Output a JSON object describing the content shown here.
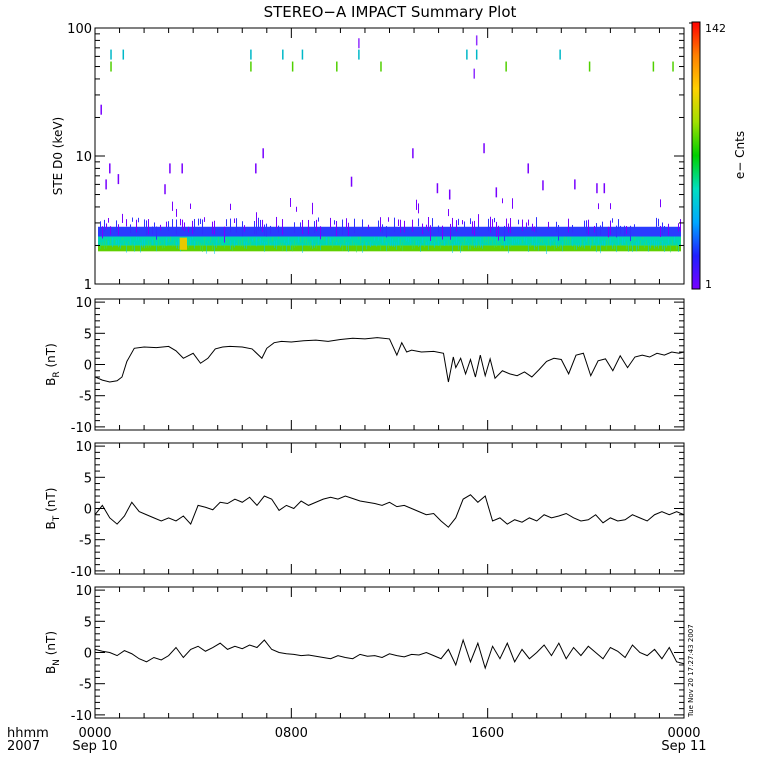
{
  "title": "STEREO−A IMPACT Summary Plot",
  "timestamp_note": "Tue Nov 20 17:27:43 2007",
  "x_axis": {
    "row1_label": "hhmm",
    "row2_label": "2007",
    "ticks": [
      {
        "hours": 0,
        "label": "0000",
        "sublabel": "Sep 10"
      },
      {
        "hours": 8,
        "label": "0800",
        "sublabel": ""
      },
      {
        "hours": 16,
        "label": "1600",
        "sublabel": ""
      },
      {
        "hours": 24,
        "label": "0000",
        "sublabel": "Sep 11"
      }
    ]
  },
  "chart_data": [
    {
      "type": "heatmap",
      "ylabel": "STE D0 (keV)",
      "yscale": "log",
      "ylim": [
        1,
        100
      ],
      "yticks": [
        {
          "value": 1,
          "label": "1"
        },
        {
          "value": 10,
          "label": "10"
        },
        {
          "value": 100,
          "label": "100"
        }
      ],
      "xlim_hours": [
        0,
        24
      ],
      "colorbar": {
        "label": "e− Cnts",
        "min_label": "1",
        "max_label": "142",
        "scale": "log",
        "colors": [
          "#7800ff",
          "#2020ff",
          "#00a8ff",
          "#00e0c0",
          "#00d000",
          "#a0e000",
          "#ffd000",
          "#ff8000",
          "#ff0000"
        ]
      },
      "bands": {
        "dense_low": {
          "energy_keV": [
            1.8,
            2.0
          ],
          "color": "#60d000"
        },
        "mid": {
          "energy_keV": [
            2.0,
            2.35
          ],
          "color": "#00d8b0"
        },
        "upper": {
          "energy_keV": [
            2.35,
            2.8
          ],
          "color": "#2a3cff"
        },
        "hot_spot": {
          "hours": [
            3.45,
            3.75
          ],
          "energy_keV": [
            1.85,
            2.3
          ],
          "color": "#e8c800"
        }
      },
      "sparse_events": [
        {
          "hours": 0.5,
          "energy_keV": 62,
          "color": "#00b8c8"
        },
        {
          "hours": 0.5,
          "energy_keV": 50,
          "color": "#50d000"
        },
        {
          "hours": 1.0,
          "energy_keV": 62,
          "color": "#00b8c8"
        },
        {
          "hours": 6.2,
          "energy_keV": 62,
          "color": "#00b8c8"
        },
        {
          "hours": 6.2,
          "energy_keV": 50,
          "color": "#50d000"
        },
        {
          "hours": 7.5,
          "energy_keV": 62,
          "color": "#00b8c8"
        },
        {
          "hours": 7.9,
          "energy_keV": 50,
          "color": "#50d000"
        },
        {
          "hours": 8.3,
          "energy_keV": 62,
          "color": "#00b8c8"
        },
        {
          "hours": 9.7,
          "energy_keV": 50,
          "color": "#50d000"
        },
        {
          "hours": 10.6,
          "energy_keV": 76,
          "color": "#9030ff"
        },
        {
          "hours": 10.6,
          "energy_keV": 62,
          "color": "#00b8c8"
        },
        {
          "hours": 11.5,
          "energy_keV": 50,
          "color": "#50d000"
        },
        {
          "hours": 15.0,
          "energy_keV": 62,
          "color": "#00b8c8"
        },
        {
          "hours": 15.3,
          "energy_keV": 44,
          "color": "#9030ff"
        },
        {
          "hours": 15.4,
          "energy_keV": 80,
          "color": "#9030ff"
        },
        {
          "hours": 15.4,
          "energy_keV": 62,
          "color": "#00b8c8"
        },
        {
          "hours": 16.6,
          "energy_keV": 50,
          "color": "#50d000"
        },
        {
          "hours": 18.8,
          "energy_keV": 62,
          "color": "#00b8c8"
        },
        {
          "hours": 20.0,
          "energy_keV": 50,
          "color": "#50d000"
        },
        {
          "hours": 22.6,
          "energy_keV": 50,
          "color": "#50d000"
        },
        {
          "hours": 23.4,
          "energy_keV": 50,
          "color": "#50d000"
        },
        {
          "hours": 0.1,
          "energy_keV": 23,
          "color": "#7800ff"
        },
        {
          "hours": 12.8,
          "energy_keV": 10.5,
          "color": "#7800ff"
        },
        {
          "hours": 15.7,
          "energy_keV": 11.5,
          "color": "#7800ff"
        },
        {
          "hours": 6.7,
          "energy_keV": 10.5,
          "color": "#7800ff"
        },
        {
          "hours": 3.4,
          "energy_keV": 8.0,
          "color": "#7800ff"
        },
        {
          "hours": 2.9,
          "energy_keV": 8.0,
          "color": "#7800ff"
        },
        {
          "hours": 0.45,
          "energy_keV": 8.0,
          "color": "#7800ff"
        },
        {
          "hours": 6.4,
          "energy_keV": 8.0,
          "color": "#7800ff"
        },
        {
          "hours": 10.3,
          "energy_keV": 6.3,
          "color": "#7800ff"
        },
        {
          "hours": 17.5,
          "energy_keV": 8.0,
          "color": "#7800ff"
        },
        {
          "hours": 19.4,
          "energy_keV": 6.0,
          "color": "#7800ff"
        },
        {
          "hours": 18.1,
          "energy_keV": 5.9,
          "color": "#7800ff"
        },
        {
          "hours": 20.3,
          "energy_keV": 5.6,
          "color": "#7800ff"
        },
        {
          "hours": 20.6,
          "energy_keV": 5.6,
          "color": "#7800ff"
        },
        {
          "hours": 13.8,
          "energy_keV": 5.6,
          "color": "#7800ff"
        },
        {
          "hours": 14.3,
          "energy_keV": 5.0,
          "color": "#7800ff"
        },
        {
          "hours": 16.2,
          "energy_keV": 5.2,
          "color": "#7800ff"
        },
        {
          "hours": 2.7,
          "energy_keV": 5.5,
          "color": "#7800ff"
        },
        {
          "hours": 0.3,
          "energy_keV": 6.0,
          "color": "#7800ff"
        },
        {
          "hours": 0.8,
          "energy_keV": 6.6,
          "color": "#7800ff"
        }
      ]
    },
    {
      "type": "line",
      "ylabel": "B_R (nT)",
      "ylabel_main": "B",
      "ylabel_sub": "R",
      "ylabel_unit": "(nT)",
      "ylim": [
        -10.5,
        10.5
      ],
      "yticks": [
        -10,
        -5,
        0,
        5,
        10
      ],
      "series": [
        {
          "x_hours": [
            0,
            0.3,
            0.6,
            0.9,
            1.1,
            1.3,
            1.6,
            2.0,
            2.5,
            3.0,
            3.3,
            3.6,
            4.0,
            4.3,
            4.6,
            4.9,
            5.2,
            5.5,
            6.0,
            6.4,
            6.8,
            7.0,
            7.3,
            7.6,
            8.0,
            8.5,
            9.0,
            9.5,
            10.0,
            10.5,
            11.0,
            11.5,
            12.0,
            12.3,
            12.5,
            12.7,
            12.9,
            13.3,
            13.8,
            14.2,
            14.4,
            14.6,
            14.7,
            14.9,
            15.1,
            15.3,
            15.5,
            15.7,
            15.9,
            16.1,
            16.3,
            16.6,
            16.9,
            17.2,
            17.5,
            17.8,
            18.1,
            18.4,
            18.7,
            19.0,
            19.3,
            19.6,
            19.9,
            20.2,
            20.5,
            20.8,
            21.1,
            21.4,
            21.7,
            22.0,
            22.3,
            22.6,
            22.9,
            23.2,
            23.5,
            23.8,
            24.0
          ],
          "y": [
            -2.0,
            -2.5,
            -2.8,
            -2.6,
            -2.0,
            0.5,
            2.6,
            2.8,
            2.7,
            2.9,
            2.2,
            1.0,
            1.8,
            0.2,
            1.0,
            2.5,
            2.8,
            2.9,
            2.8,
            2.5,
            1.0,
            2.6,
            3.5,
            3.7,
            3.6,
            3.8,
            3.9,
            3.7,
            4.0,
            4.2,
            4.1,
            4.3,
            4.1,
            1.5,
            3.5,
            2.0,
            2.3,
            2.0,
            2.1,
            1.8,
            -2.8,
            1.2,
            -0.5,
            1.0,
            -1.5,
            0.8,
            -2.0,
            1.5,
            -1.8,
            0.9,
            -2.2,
            -1.0,
            -1.5,
            -1.8,
            -1.2,
            -2.0,
            -0.8,
            0.5,
            1.0,
            0.8,
            -1.5,
            1.5,
            1.8,
            -1.8,
            0.6,
            0.9,
            -1.0,
            1.4,
            -0.5,
            1.2,
            1.5,
            1.2,
            1.8,
            1.5,
            2.0,
            1.8,
            2.0
          ],
          "color": "#000000"
        }
      ]
    },
    {
      "type": "line",
      "ylabel": "B_T (nT)",
      "ylabel_main": "B",
      "ylabel_sub": "T",
      "ylabel_unit": "(nT)",
      "ylim": [
        -10.5,
        10.5
      ],
      "yticks": [
        -10,
        -5,
        0,
        5,
        10
      ],
      "series": [
        {
          "x_hours": [
            0,
            0.3,
            0.6,
            0.9,
            1.2,
            1.5,
            1.8,
            2.1,
            2.4,
            2.7,
            3.0,
            3.3,
            3.6,
            3.9,
            4.2,
            4.5,
            4.8,
            5.1,
            5.4,
            5.7,
            6.0,
            6.3,
            6.6,
            6.9,
            7.2,
            7.5,
            7.8,
            8.1,
            8.4,
            8.7,
            9.0,
            9.3,
            9.6,
            9.9,
            10.2,
            10.5,
            10.8,
            11.1,
            11.4,
            11.7,
            12.0,
            12.3,
            12.6,
            12.9,
            13.2,
            13.5,
            13.8,
            14.1,
            14.4,
            14.7,
            15.0,
            15.3,
            15.6,
            15.9,
            16.2,
            16.5,
            16.8,
            17.1,
            17.4,
            17.7,
            18.0,
            18.3,
            18.6,
            18.9,
            19.2,
            19.5,
            19.8,
            20.1,
            20.4,
            20.7,
            21.0,
            21.3,
            21.6,
            21.9,
            22.2,
            22.5,
            22.8,
            23.1,
            23.4,
            23.7,
            24.0
          ],
          "y": [
            -1.0,
            0.5,
            -1.5,
            -2.5,
            -1.2,
            1.0,
            -0.5,
            -1.0,
            -1.5,
            -2.0,
            -1.5,
            -2.0,
            -1.2,
            -2.5,
            0.5,
            0.2,
            -0.2,
            1.0,
            0.8,
            1.5,
            1.0,
            1.8,
            0.5,
            2.0,
            1.5,
            -0.3,
            0.5,
            0.0,
            1.2,
            0.5,
            1.0,
            1.5,
            1.8,
            1.5,
            2.0,
            1.6,
            1.2,
            1.0,
            0.8,
            0.5,
            1.0,
            0.3,
            0.5,
            0.0,
            -0.5,
            -1.0,
            -0.8,
            -2.0,
            -3.0,
            -1.5,
            1.5,
            2.2,
            1.0,
            2.0,
            -2.0,
            -1.5,
            -2.5,
            -1.8,
            -2.2,
            -1.5,
            -2.0,
            -1.0,
            -1.5,
            -1.2,
            -0.8,
            -1.5,
            -2.0,
            -1.8,
            -1.0,
            -2.3,
            -1.5,
            -2.0,
            -1.8,
            -1.0,
            -1.5,
            -2.0,
            -1.0,
            -0.5,
            -1.0,
            -0.5,
            -1.0
          ],
          "color": "#000000"
        }
      ]
    },
    {
      "type": "line",
      "ylabel": "B_N (nT)",
      "ylabel_main": "B",
      "ylabel_sub": "N",
      "ylabel_unit": "(nT)",
      "ylim": [
        -10.5,
        10.5
      ],
      "yticks": [
        -10,
        -5,
        0,
        5,
        10
      ],
      "series": [
        {
          "x_hours": [
            0,
            0.3,
            0.6,
            0.9,
            1.2,
            1.5,
            1.8,
            2.1,
            2.4,
            2.7,
            3.0,
            3.3,
            3.6,
            3.9,
            4.2,
            4.5,
            4.8,
            5.1,
            5.4,
            5.7,
            6.0,
            6.3,
            6.6,
            6.9,
            7.2,
            7.5,
            7.8,
            8.1,
            8.4,
            8.7,
            9.0,
            9.3,
            9.6,
            9.9,
            10.2,
            10.5,
            10.8,
            11.1,
            11.4,
            11.7,
            12.0,
            12.3,
            12.6,
            12.9,
            13.2,
            13.5,
            13.8,
            14.1,
            14.4,
            14.7,
            15.0,
            15.3,
            15.6,
            15.9,
            16.2,
            16.5,
            16.8,
            17.1,
            17.4,
            17.7,
            18.0,
            18.3,
            18.6,
            18.9,
            19.2,
            19.5,
            19.8,
            20.1,
            20.4,
            20.7,
            21.0,
            21.3,
            21.6,
            21.9,
            22.2,
            22.5,
            22.8,
            23.1,
            23.4,
            23.7,
            24.0
          ],
          "y": [
            0.5,
            0.2,
            0.0,
            -0.5,
            0.3,
            -0.2,
            -1.0,
            -1.5,
            -0.8,
            -1.2,
            -0.5,
            0.8,
            -0.8,
            0.5,
            1.0,
            0.2,
            0.8,
            1.5,
            0.5,
            1.0,
            0.6,
            1.2,
            0.8,
            2.0,
            0.5,
            0.0,
            -0.2,
            -0.3,
            -0.5,
            -0.4,
            -0.6,
            -0.8,
            -1.0,
            -0.5,
            -0.8,
            -1.0,
            -0.3,
            -0.6,
            -0.5,
            -0.8,
            -0.2,
            -0.5,
            -0.7,
            -0.3,
            -0.4,
            0.0,
            -0.5,
            -1.0,
            0.5,
            -2.0,
            2.0,
            -1.5,
            1.5,
            -2.5,
            1.0,
            -1.0,
            1.5,
            -1.5,
            0.5,
            -1.0,
            0.0,
            1.2,
            -0.5,
            1.5,
            -1.0,
            0.8,
            -0.5,
            1.0,
            0.0,
            -1.0,
            0.8,
            0.2,
            -0.8,
            1.2,
            0.0,
            -0.5,
            0.5,
            -1.0,
            0.8,
            -1.5,
            -1.8
          ],
          "color": "#000000"
        }
      ]
    }
  ]
}
